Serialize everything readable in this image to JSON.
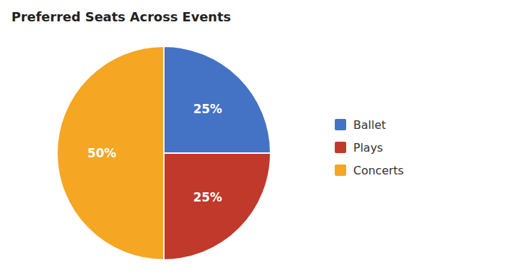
{
  "chart_data": {
    "type": "pie",
    "title": "Preferred Seats Across Events",
    "categories": [
      "Ballet",
      "Plays",
      "Concerts"
    ],
    "values": [
      25,
      25,
      50
    ],
    "value_labels": [
      "25%",
      "25%",
      "50%"
    ],
    "colors": [
      "#4472C4",
      "#C0392B",
      "#F5A623"
    ],
    "data_labels": true,
    "legend": "right"
  }
}
